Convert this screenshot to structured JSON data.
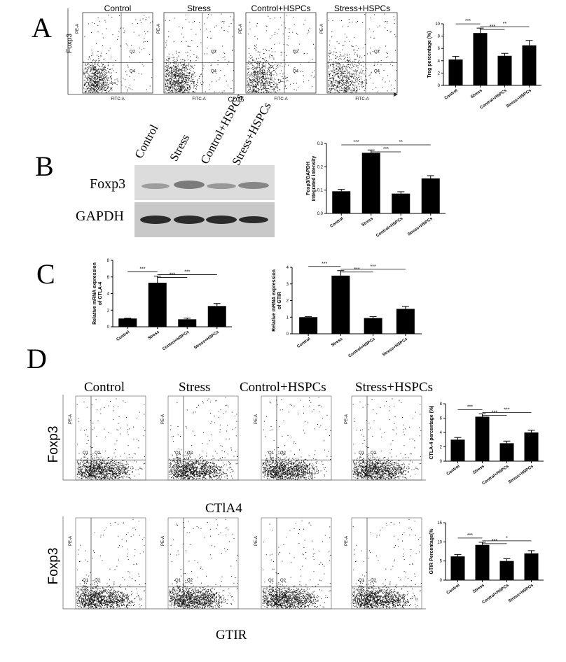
{
  "panels": {
    "a": "A",
    "b": "B",
    "c": "C",
    "d": "D"
  },
  "panel_a": {
    "titles": [
      "Control",
      "Stress",
      "Control+HSPCs",
      "Stress+HSPCs"
    ],
    "y_label": "Foxp3",
    "x_label": "CD25",
    "quadrants": [
      "Q2",
      "Q4"
    ],
    "axis_small": {
      "x": "FITC-A",
      "y": "PE-A"
    }
  },
  "panel_b": {
    "lanes": [
      "Control",
      "Stress",
      "Control+HSPCs",
      "Stress+HSPCs"
    ],
    "rows": [
      "Foxp3",
      "GAPDH"
    ]
  },
  "panel_d": {
    "titles": [
      "Control",
      "Stress",
      "Control+HSPCs",
      "Stress+HSPCs"
    ],
    "row1_y": "Foxp3",
    "row1_x": "CTlA4",
    "row2_y": "Foxp3",
    "row2_x": "GTIR",
    "quadrants": [
      "Q1",
      "Q2"
    ],
    "axis_small": {
      "x": "FITC-A",
      "y": "PE-A"
    }
  },
  "chart_data": [
    {
      "id": "a",
      "type": "bar",
      "categories": [
        "Control",
        "Stress",
        "Control+HSPCs",
        "Stress+HSPCs"
      ],
      "values": [
        4.2,
        8.5,
        4.8,
        6.5
      ],
      "errors": [
        0.5,
        0.8,
        0.4,
        0.8
      ],
      "ylabel": "Treg percentage (%)",
      "ylim": [
        0,
        10
      ],
      "yticks": [
        0,
        2,
        4,
        6,
        8,
        10
      ],
      "sig": [
        {
          "from": 0,
          "to": 1,
          "label": "***"
        },
        {
          "from": 1,
          "to": 2,
          "label": "***"
        },
        {
          "from": 1,
          "to": 3,
          "label": "**"
        }
      ]
    },
    {
      "id": "b",
      "type": "bar",
      "categories": [
        "Control",
        "Stress",
        "Control+HSPCs",
        "Stress+HSPCs"
      ],
      "values": [
        0.095,
        0.26,
        0.085,
        0.15
      ],
      "errors": [
        0.008,
        0.012,
        0.008,
        0.012
      ],
      "ylabel": "Foxp3/GAPDH Integrated intensity",
      "ylim": [
        0,
        0.3
      ],
      "yticks": [
        "0.0",
        "0.1",
        "0.2",
        "0.3"
      ],
      "sig": [
        {
          "from": 0,
          "to": 1,
          "label": "***"
        },
        {
          "from": 1,
          "to": 2,
          "label": "***"
        },
        {
          "from": 1,
          "to": 3,
          "label": "**"
        }
      ]
    },
    {
      "id": "c1",
      "type": "bar",
      "categories": [
        "Control",
        "Stress",
        "Control+HSPCs",
        "Stress+HSPCs"
      ],
      "values": [
        1.0,
        5.3,
        0.9,
        2.5
      ],
      "errors": [
        0.05,
        0.8,
        0.15,
        0.3
      ],
      "ylabel": "Relative mRNA expression of CTLA-4",
      "ylim": [
        0,
        8
      ],
      "yticks": [
        0,
        2,
        4,
        6,
        8
      ],
      "sig": [
        {
          "from": 0,
          "to": 1,
          "label": "***"
        },
        {
          "from": 1,
          "to": 2,
          "label": "***"
        },
        {
          "from": 1,
          "to": 3,
          "label": "***"
        }
      ]
    },
    {
      "id": "c2",
      "type": "bar",
      "categories": [
        "Control",
        "Stress",
        "Control+HSPCs",
        "Stress+HSPCs"
      ],
      "values": [
        1.0,
        3.5,
        0.95,
        1.5
      ],
      "errors": [
        0.03,
        0.3,
        0.08,
        0.15
      ],
      "ylabel": "Relative mRNA expression of GTIR",
      "ylim": [
        0,
        4
      ],
      "yticks": [
        0,
        1,
        2,
        3,
        4
      ],
      "sig": [
        {
          "from": 0,
          "to": 1,
          "label": "***"
        },
        {
          "from": 1,
          "to": 2,
          "label": "***"
        },
        {
          "from": 1,
          "to": 3,
          "label": "***"
        }
      ]
    },
    {
      "id": "d1",
      "type": "bar",
      "categories": [
        "Control",
        "Stress",
        "Control+HSPCs",
        "Stress+HSPCs"
      ],
      "values": [
        3.0,
        6.2,
        2.5,
        4.0
      ],
      "errors": [
        0.3,
        0.4,
        0.3,
        0.3
      ],
      "ylabel": "CTLA-4 percentage (%)",
      "ylim": [
        0,
        8
      ],
      "yticks": [
        0,
        2,
        4,
        6,
        8
      ],
      "sig": [
        {
          "from": 0,
          "to": 1,
          "label": "***"
        },
        {
          "from": 1,
          "to": 2,
          "label": "***"
        },
        {
          "from": 1,
          "to": 3,
          "label": "***"
        }
      ]
    },
    {
      "id": "d2",
      "type": "bar",
      "categories": [
        "Control",
        "Stress",
        "Control+HSPCs",
        "Stress+HSPCs"
      ],
      "values": [
        6.2,
        9.2,
        5.0,
        7.0
      ],
      "errors": [
        0.5,
        0.7,
        0.6,
        0.7
      ],
      "ylabel": "GTIR Percentage(%",
      "ylim": [
        0,
        15
      ],
      "yticks": [
        0,
        5,
        10,
        15
      ],
      "sig": [
        {
          "from": 0,
          "to": 1,
          "label": "***"
        },
        {
          "from": 1,
          "to": 2,
          "label": "***"
        },
        {
          "from": 1,
          "to": 3,
          "label": "*"
        }
      ]
    }
  ]
}
